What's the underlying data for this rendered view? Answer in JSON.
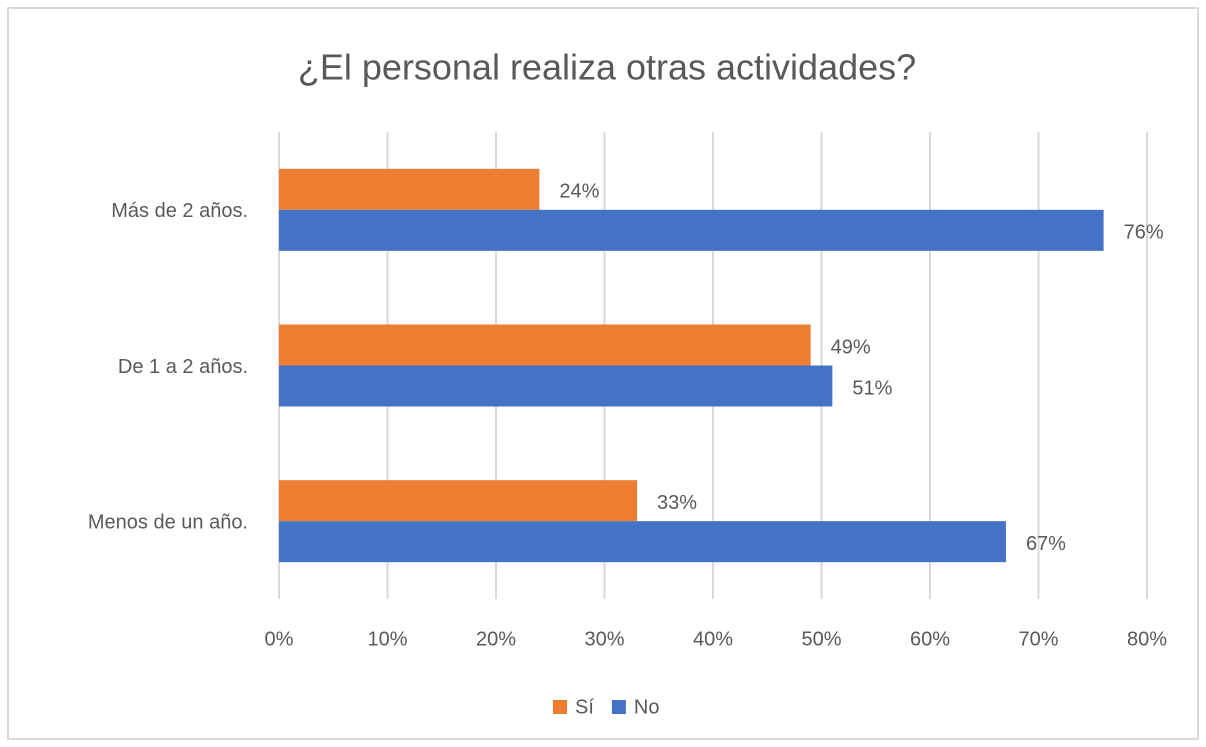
{
  "chart_data": {
    "type": "barh",
    "title": "¿El personal realiza otras actividades?",
    "categories": [
      "Más de 2 años.",
      "De 1 a 2 años.",
      "Menos de un año."
    ],
    "series": [
      {
        "name": "Sí",
        "color": "#ed7d31",
        "values": [
          24,
          49,
          33
        ],
        "value_labels": [
          "24%",
          "49%",
          "33%"
        ]
      },
      {
        "name": "No",
        "color": "#4472c4",
        "values": [
          76,
          51,
          67
        ],
        "value_labels": [
          "76%",
          "51%",
          "67%"
        ]
      }
    ],
    "xlim": [
      0,
      80
    ],
    "xticks": [
      {
        "value": 0,
        "label": "0%"
      },
      {
        "value": 10,
        "label": "10%"
      },
      {
        "value": 20,
        "label": "20%"
      },
      {
        "value": 30,
        "label": "30%"
      },
      {
        "value": 40,
        "label": "40%"
      },
      {
        "value": 50,
        "label": "50%"
      },
      {
        "value": 60,
        "label": "60%"
      },
      {
        "value": 70,
        "label": "70%"
      },
      {
        "value": 80,
        "label": "80%"
      }
    ],
    "grid": true,
    "legend": "bottom"
  }
}
